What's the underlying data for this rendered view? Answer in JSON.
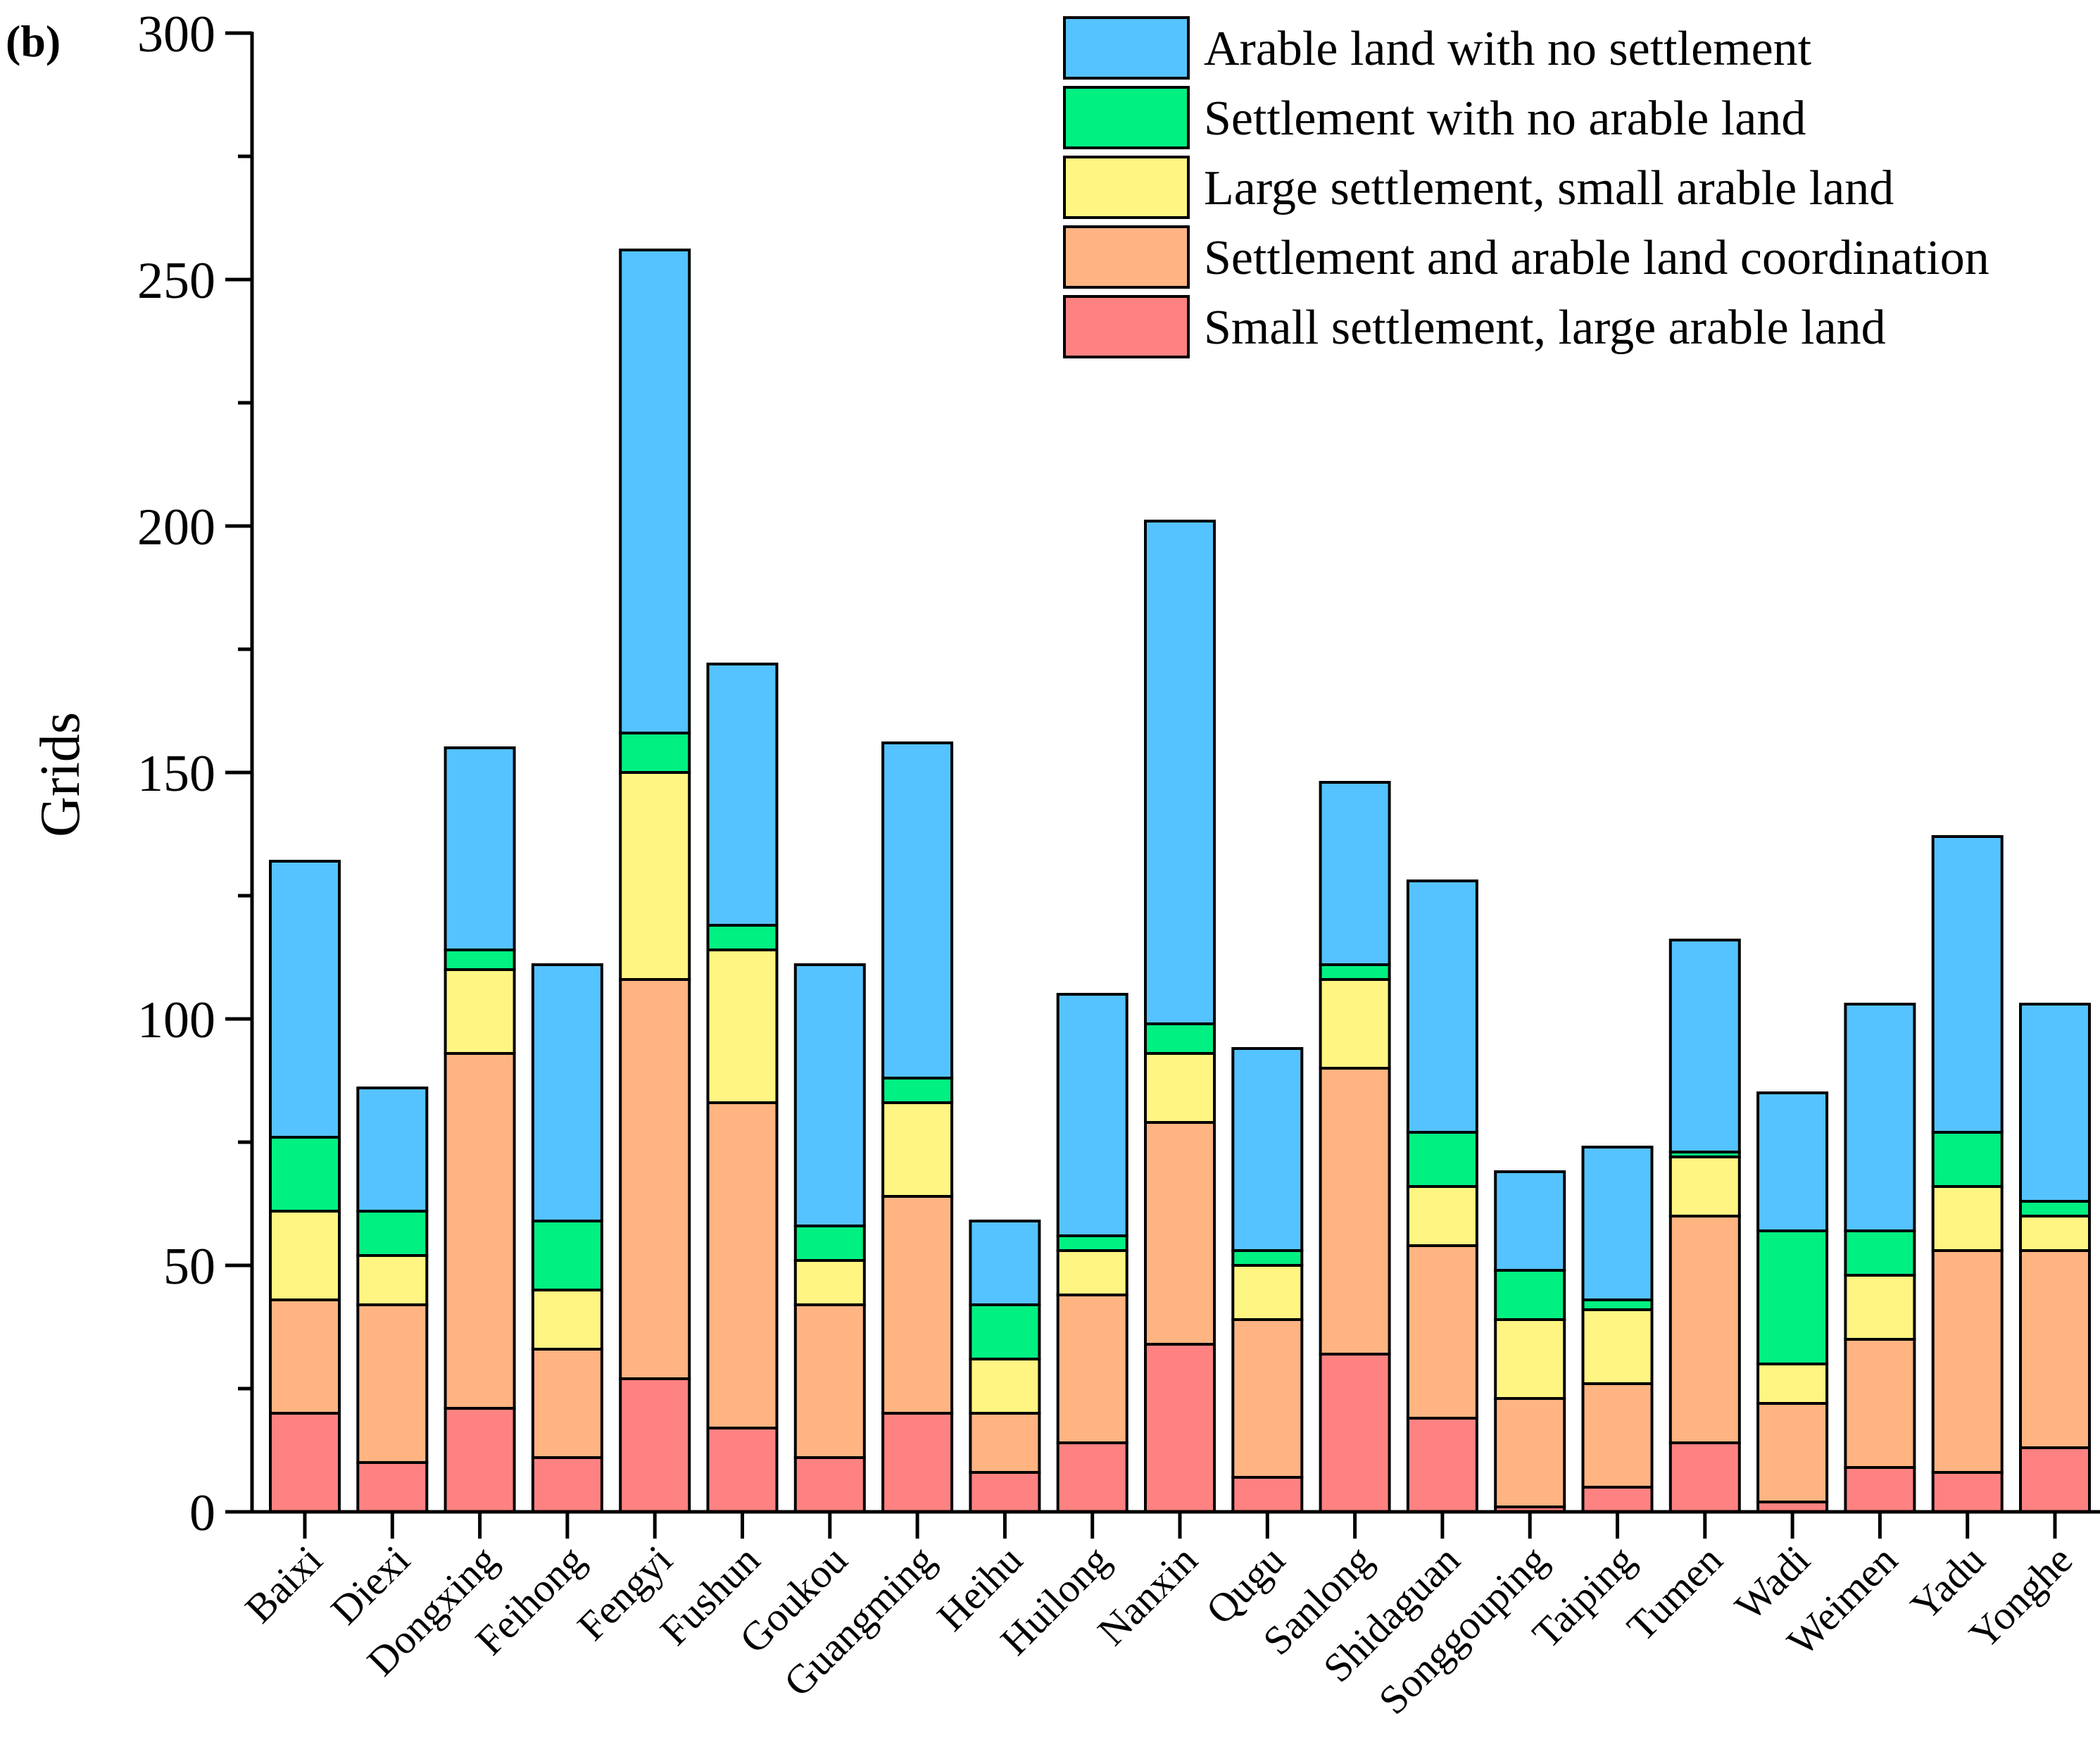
{
  "panel_label": "(b)",
  "chart_data": {
    "type": "bar",
    "stacked": true,
    "title": "",
    "xlabel": "",
    "ylabel": "Grids",
    "ylim": [
      0,
      300
    ],
    "yticks": [
      0,
      50,
      100,
      150,
      200,
      250,
      300
    ],
    "ytick_labels": [
      "0",
      "50",
      "100",
      "150",
      "200",
      "250",
      "300"
    ],
    "legend_position": "top-right",
    "categories": [
      "Baixi",
      "Diexi",
      "Dongxing",
      "Feihong",
      "Fengyi",
      "Fushun",
      "Goukou",
      "Guangming",
      "Heihu",
      "Huilong",
      "Nanxin",
      "Qugu",
      "Sanlong",
      "Shidaguan",
      "Songgouping",
      "Taiping",
      "Tumen",
      "Wadi",
      "Weimen",
      "Yadu",
      "Yonghe"
    ],
    "series": [
      {
        "name": "Small settlement, large arable land",
        "color": "#ff8282",
        "values": [
          20,
          10,
          21,
          11,
          27,
          17,
          11,
          20,
          8,
          14,
          34,
          7,
          32,
          19,
          1,
          5,
          14,
          2,
          9,
          8,
          13
        ]
      },
      {
        "name": "Settlement and arable land coordination",
        "color": "#ffb482",
        "values": [
          23,
          32,
          72,
          22,
          81,
          66,
          31,
          44,
          12,
          30,
          45,
          32,
          58,
          35,
          22,
          21,
          46,
          20,
          26,
          45,
          40
        ]
      },
      {
        "name": "Large settlement, small arable land",
        "color": "#fff582",
        "values": [
          18,
          10,
          17,
          12,
          42,
          31,
          9,
          19,
          11,
          9,
          14,
          11,
          18,
          12,
          16,
          15,
          12,
          8,
          13,
          13,
          7
        ]
      },
      {
        "name": "Settlement with no arable land",
        "color": "#00f082",
        "values": [
          15,
          9,
          4,
          14,
          8,
          5,
          7,
          5,
          11,
          3,
          6,
          3,
          3,
          11,
          10,
          2,
          1,
          27,
          9,
          11,
          3
        ]
      },
      {
        "name": "Arable land with no settlement",
        "color": "#55c3ff",
        "values": [
          56,
          25,
          41,
          52,
          98,
          53,
          53,
          68,
          17,
          49,
          102,
          41,
          37,
          51,
          20,
          31,
          43,
          28,
          46,
          60,
          40
        ]
      }
    ]
  }
}
